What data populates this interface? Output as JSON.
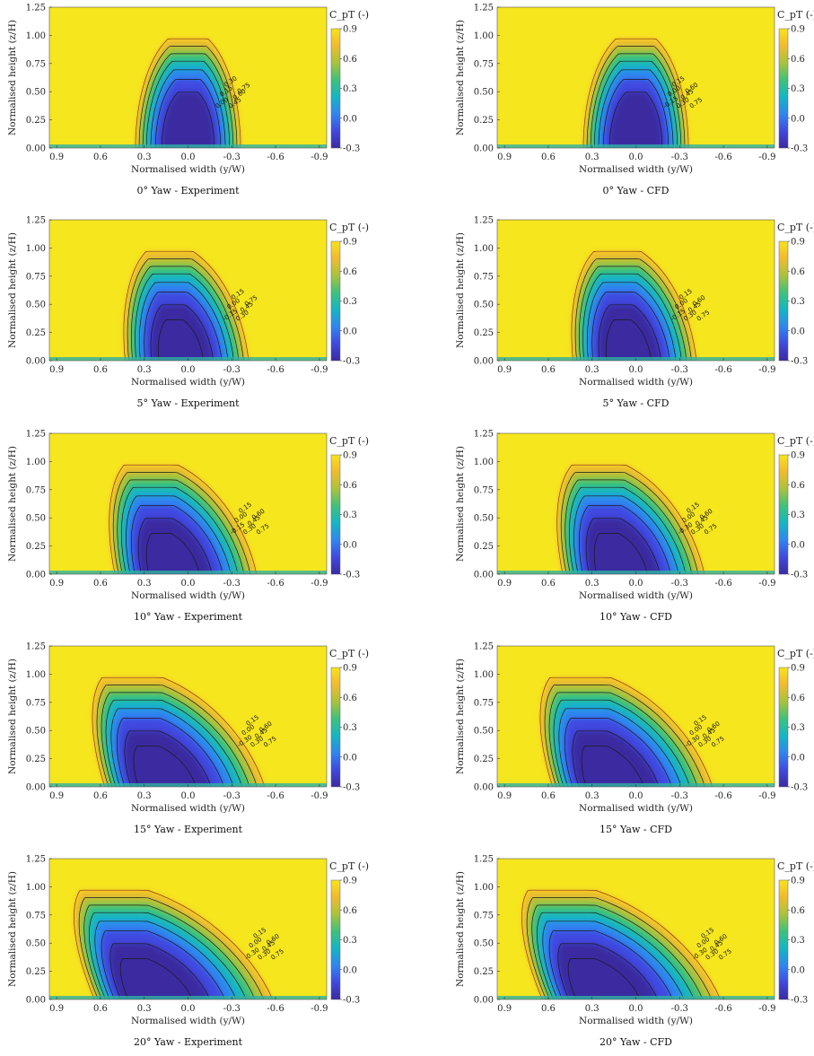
{
  "colors": {
    "background": "#f6e61e",
    "colormap": [
      "#3b2aa0",
      "#3f49e0",
      "#2f86f0",
      "#14b6c4",
      "#3ec27a",
      "#a9c33a",
      "#f0bb2e",
      "#f9e21a"
    ],
    "contour_line": "#1a1a1a",
    "outer_contour_line": "#8c2f0e"
  },
  "colorbar": {
    "title": "C_pT (-)",
    "ticks": [
      "0.9",
      "0.6",
      "0.3",
      "0.0",
      "-0.3"
    ],
    "range": [
      -0.3,
      0.9
    ]
  },
  "axes": {
    "ylabel": "Normalised height (z/H)",
    "xlabel": "Normalised width (y/W)",
    "yticks": [
      "0.00",
      "0.25",
      "0.50",
      "0.75",
      "1.00",
      "1.25"
    ],
    "xticks": [
      "0.9",
      "0.6",
      "0.3",
      "0.0",
      "-0.3",
      "-0.6",
      "-0.9"
    ]
  },
  "chart_data": [
    {
      "type": "heatmap",
      "title": "0° Yaw - Experiment",
      "yaw_deg": 0,
      "source": "Experiment",
      "xlim": [
        0.95,
        -0.95
      ],
      "ylim": [
        0,
        1.25
      ],
      "contour_levels": [
        0.0,
        0.15,
        0.3,
        0.45,
        0.6,
        0.75
      ],
      "contour_labels": [
        "0.00",
        "0.15",
        "0.30",
        "0.45",
        "0.60",
        "0.75"
      ]
    },
    {
      "type": "heatmap",
      "title": "0° Yaw - CFD",
      "yaw_deg": 0,
      "source": "CFD",
      "xlim": [
        0.95,
        -0.95
      ],
      "ylim": [
        0,
        1.25
      ],
      "contour_levels": [
        -0.15,
        0.0,
        0.15,
        0.3,
        0.45,
        0.6,
        0.75
      ],
      "contour_labels": [
        "-0.15",
        "0.00",
        "0.15",
        "0.30",
        "0.45",
        "0.60",
        "0.75"
      ]
    },
    {
      "type": "heatmap",
      "title": "5° Yaw - Experiment",
      "yaw_deg": 5,
      "source": "Experiment",
      "xlim": [
        0.95,
        -0.95
      ],
      "ylim": [
        0,
        1.25
      ],
      "contour_levels": [
        -0.15,
        0.0,
        0.15,
        0.3,
        0.45,
        0.75
      ],
      "contour_labels": [
        "-0.15",
        "0.00",
        "0.15",
        "0.30",
        "0.45",
        "0.75"
      ]
    },
    {
      "type": "heatmap",
      "title": "5° Yaw - CFD",
      "yaw_deg": 5,
      "source": "CFD",
      "xlim": [
        0.95,
        -0.95
      ],
      "ylim": [
        0,
        1.25
      ],
      "contour_levels": [
        -0.15,
        0.0,
        0.15,
        0.3,
        0.45,
        0.6,
        0.75
      ],
      "contour_labels": [
        "-0.15",
        "0.00",
        "0.15",
        "0.30",
        "0.45",
        "0.60",
        "0.75"
      ]
    },
    {
      "type": "heatmap",
      "title": "10° Yaw - Experiment",
      "yaw_deg": 10,
      "source": "Experiment",
      "xlim": [
        0.95,
        -0.95
      ],
      "ylim": [
        0,
        1.25
      ],
      "contour_levels": [
        -0.15,
        0.0,
        0.15,
        0.3,
        0.45,
        0.6,
        0.75
      ],
      "contour_labels": [
        "-0.15",
        "0.00",
        "0.15",
        "0.30",
        "0.45",
        "0.60",
        "0.75"
      ]
    },
    {
      "type": "heatmap",
      "title": "10° Yaw - CFD",
      "yaw_deg": 10,
      "source": "CFD",
      "xlim": [
        0.95,
        -0.95
      ],
      "ylim": [
        0,
        1.25
      ],
      "contour_levels": [
        -0.3,
        0.0,
        0.15,
        0.3,
        0.45,
        0.6,
        0.75
      ],
      "contour_labels": [
        "-0.30",
        "0.00",
        "0.15",
        "0.30",
        "0.45",
        "0.60",
        "0.75"
      ]
    },
    {
      "type": "heatmap",
      "title": "15° Yaw - Experiment",
      "yaw_deg": 15,
      "source": "Experiment",
      "xlim": [
        0.95,
        -0.95
      ],
      "ylim": [
        0,
        1.25
      ],
      "contour_levels": [
        -0.3,
        0.0,
        0.15,
        0.3,
        0.45,
        0.6,
        0.75
      ],
      "contour_labels": [
        "-0.30",
        "0.00",
        "0.15",
        "0.30",
        "0.45",
        "0.60",
        "0.75"
      ]
    },
    {
      "type": "heatmap",
      "title": "15° Yaw - CFD",
      "yaw_deg": 15,
      "source": "CFD",
      "xlim": [
        0.95,
        -0.95
      ],
      "ylim": [
        0,
        1.25
      ],
      "contour_levels": [
        -0.3,
        0.0,
        0.15,
        0.3,
        0.45,
        0.6,
        0.75
      ],
      "contour_labels": [
        "-0.30",
        "0.00",
        "0.15",
        "0.30",
        "0.45",
        "0.60",
        "0.75"
      ]
    },
    {
      "type": "heatmap",
      "title": "20° Yaw - Experiment",
      "yaw_deg": 20,
      "source": "Experiment",
      "xlim": [
        0.95,
        -0.95
      ],
      "ylim": [
        0,
        1.25
      ],
      "contour_levels": [
        -0.3,
        0.0,
        0.15,
        0.3,
        0.45,
        0.6,
        0.75
      ],
      "contour_labels": [
        "-0.30",
        "0.00",
        "0.15",
        "0.30",
        "0.45",
        "0.60",
        "0.75"
      ]
    },
    {
      "type": "heatmap",
      "title": "20° Yaw - CFD",
      "yaw_deg": 20,
      "source": "CFD",
      "xlim": [
        0.95,
        -0.95
      ],
      "ylim": [
        0,
        1.25
      ],
      "contour_levels": [
        -0.3,
        0.0,
        0.15,
        0.3,
        0.45,
        0.6,
        0.75
      ],
      "contour_labels": [
        "-0.30",
        "0.00",
        "0.15",
        "0.30",
        "0.45",
        "0.60",
        "0.75"
      ]
    }
  ]
}
